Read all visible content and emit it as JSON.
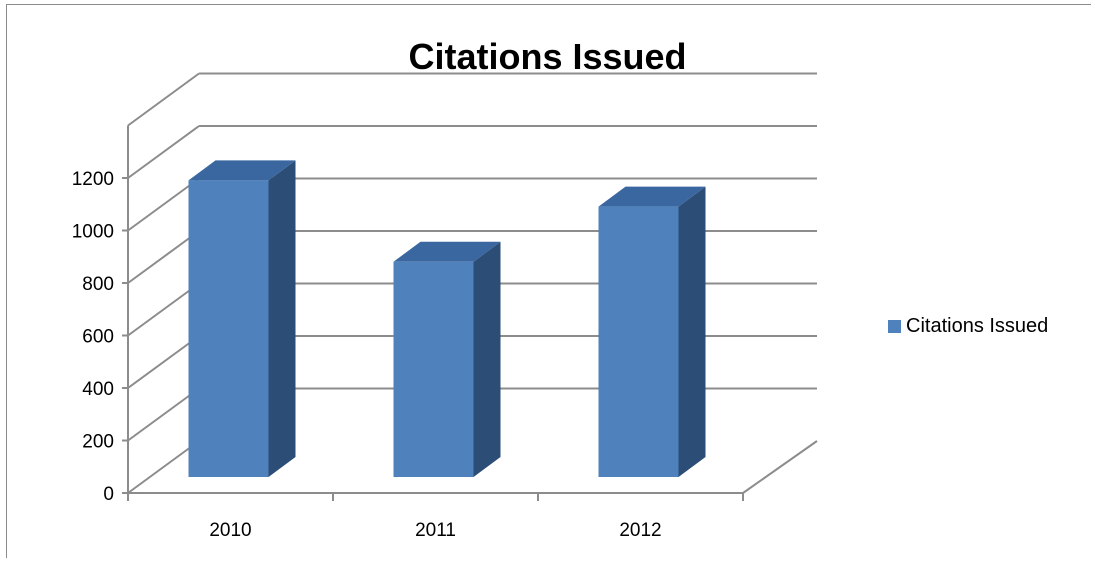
{
  "chart_data": {
    "type": "bar",
    "title": "Citations Issued",
    "categories": [
      "2010",
      "2011",
      "2012"
    ],
    "series": [
      {
        "name": "Citations Issued",
        "values": [
          1130,
          820,
          1030
        ],
        "color": "#4f81bd"
      }
    ],
    "yticks": [
      "0",
      "200",
      "400",
      "600",
      "800",
      "1000",
      "1200"
    ],
    "ylim": [
      0,
      1200
    ],
    "grid": true,
    "legend_position": "right",
    "three_d": true
  }
}
